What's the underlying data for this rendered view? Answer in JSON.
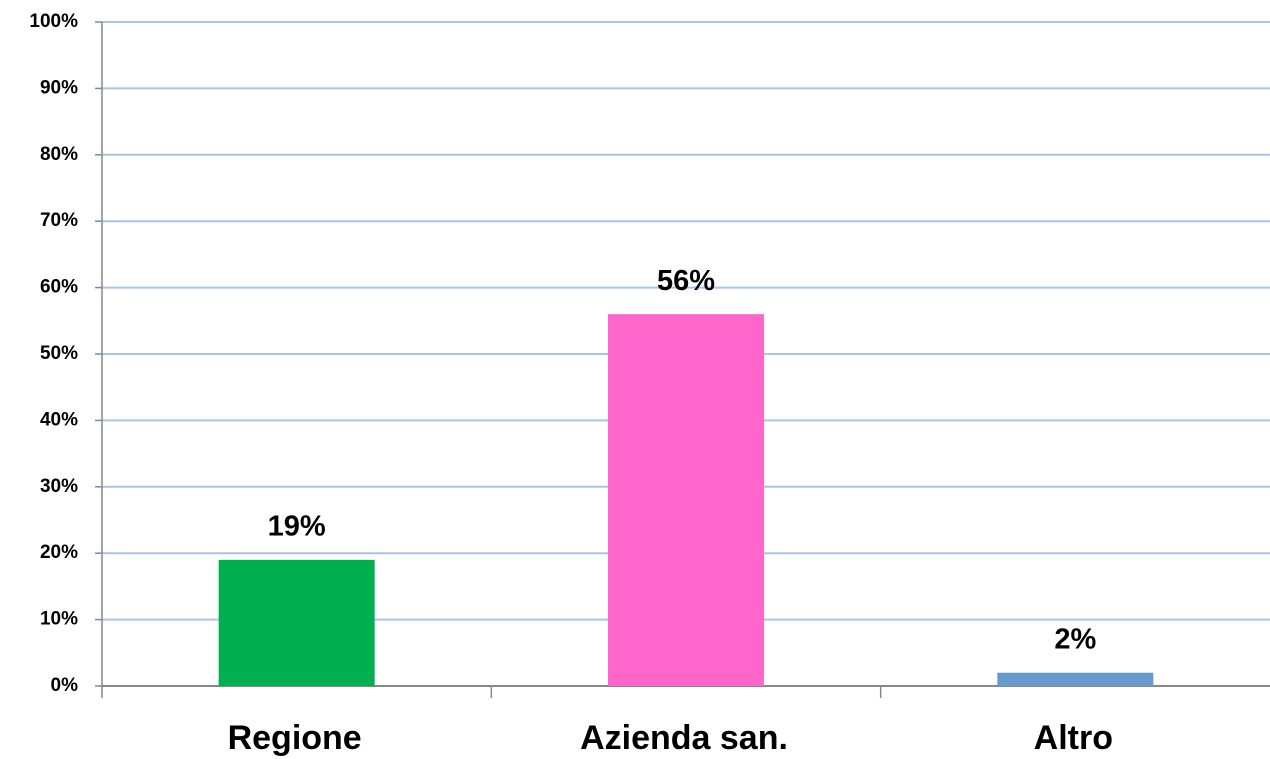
{
  "chart_data": {
    "type": "bar",
    "categories": [
      "Regione",
      "Azienda san.",
      "Altro"
    ],
    "values": [
      19,
      56,
      2
    ],
    "value_labels": [
      "19%",
      "56%",
      "2%"
    ],
    "colors": [
      "#00b050",
      "#ff66cc",
      "#6699cc"
    ],
    "ylim": [
      0,
      100
    ],
    "yticks": [
      {
        "value": 0,
        "label": "0%"
      },
      {
        "value": 10,
        "label": "10%"
      },
      {
        "value": 20,
        "label": "20%"
      },
      {
        "value": 30,
        "label": "30%"
      },
      {
        "value": 40,
        "label": "40%"
      },
      {
        "value": 50,
        "label": "50%"
      },
      {
        "value": 60,
        "label": "60%"
      },
      {
        "value": 70,
        "label": "70%"
      },
      {
        "value": 80,
        "label": "80%"
      },
      {
        "value": 90,
        "label": "90%"
      },
      {
        "value": 100,
        "label": "100%"
      }
    ],
    "grid": true
  }
}
